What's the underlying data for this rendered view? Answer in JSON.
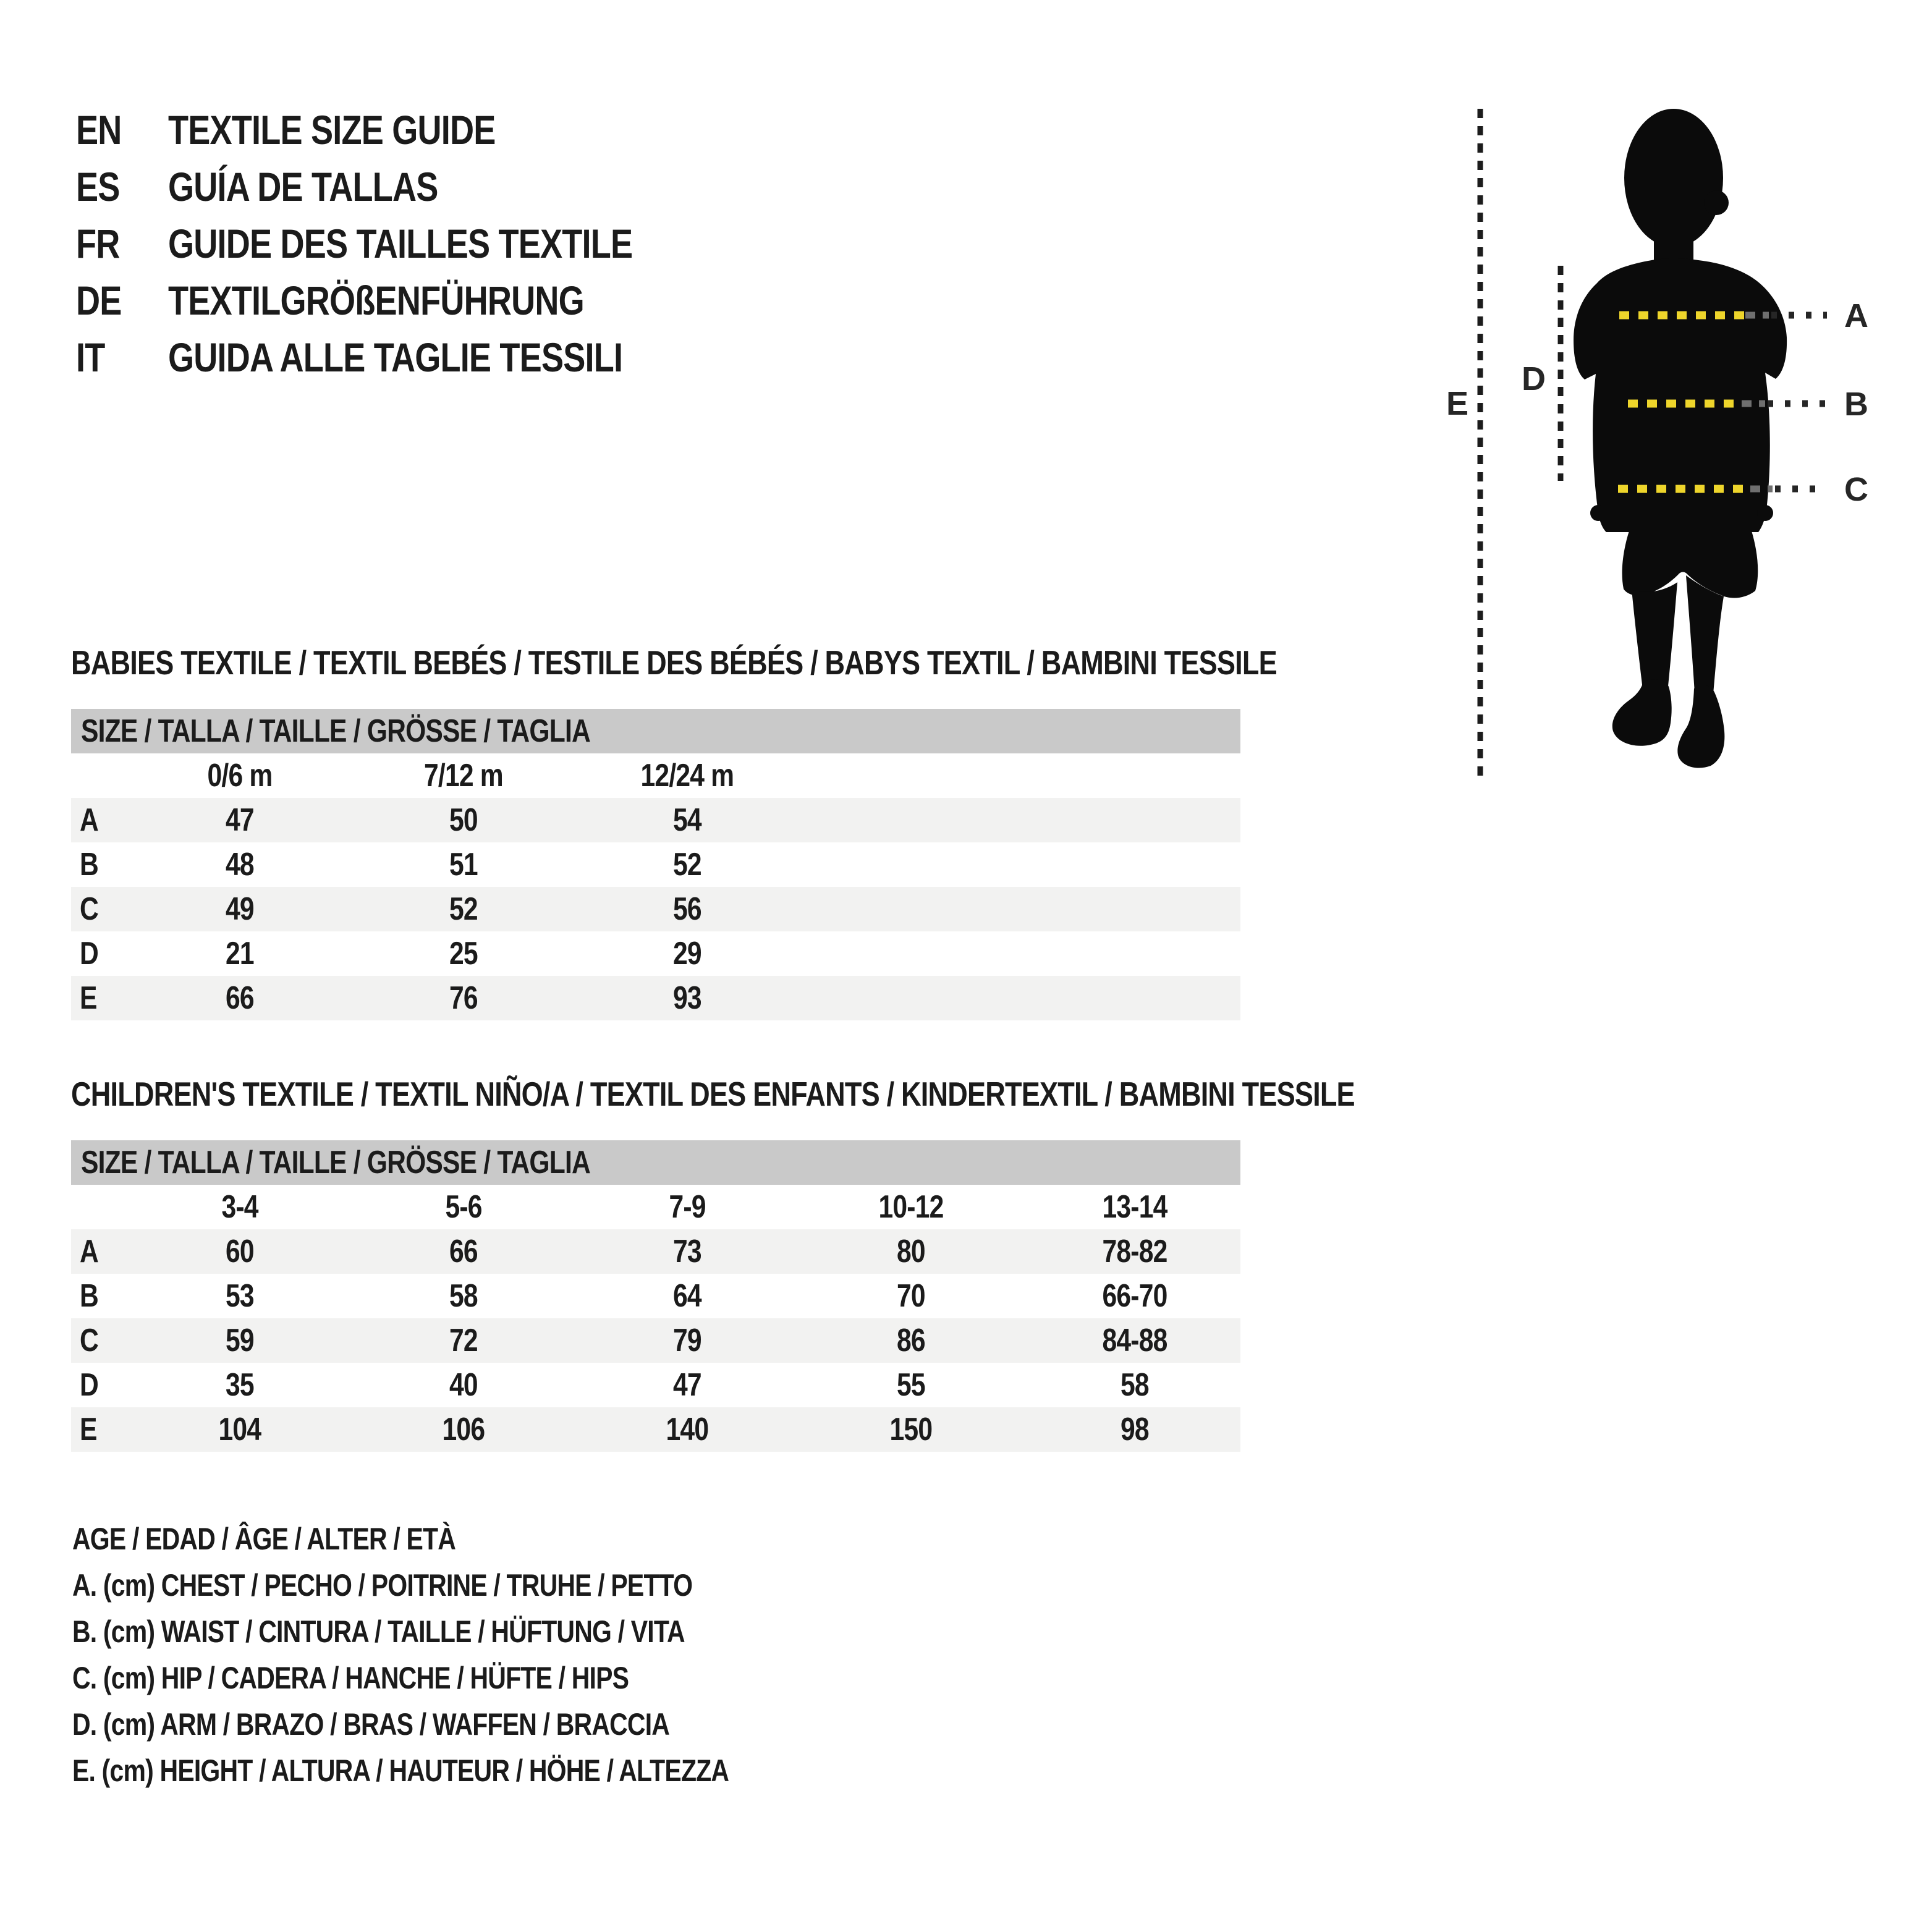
{
  "languages": {
    "items": [
      {
        "code": "EN",
        "title": "TEXTILE SIZE GUIDE"
      },
      {
        "code": "ES",
        "title": "GUÍA DE TALLAS"
      },
      {
        "code": "FR",
        "title": "GUIDE DES TAILLES TEXTILE"
      },
      {
        "code": "DE",
        "title": "TEXTILGRÖßENFÜHRUNG"
      },
      {
        "code": "IT",
        "title": "GUIDA ALLE TAGLIE TESSILI"
      }
    ]
  },
  "figure": {
    "measure_labels": [
      "A",
      "B",
      "C"
    ],
    "side_labels": {
      "d": "D",
      "e": "E"
    },
    "colors": {
      "silhouette": "#0b0b0b",
      "tape_yellow": "#eed52b",
      "tape_gray": "#6f6f6f",
      "dots_dark": "#262626",
      "label": "#262626"
    }
  },
  "babies": {
    "heading": "BABIES TEXTILE / TEXTIL BEBÉS / TESTILE DES BÉBÉS / BABYS TEXTIL / BAMBINI TESSILE",
    "size_bar": "SIZE / TALLA / TAILLE / GRÖSSE / TAGLIA",
    "columns": [
      "0/6 m",
      "7/12 m",
      "12/24 m"
    ],
    "rows": [
      {
        "label": "A",
        "values": [
          "47",
          "50",
          "54"
        ]
      },
      {
        "label": "B",
        "values": [
          "48",
          "51",
          "52"
        ]
      },
      {
        "label": "C",
        "values": [
          "49",
          "52",
          "56"
        ]
      },
      {
        "label": "D",
        "values": [
          "21",
          "25",
          "29"
        ]
      },
      {
        "label": "E",
        "values": [
          "66",
          "76",
          "93"
        ]
      }
    ]
  },
  "children": {
    "heading": "CHILDREN'S TEXTILE / TEXTIL NIÑO/A / TEXTIL DES ENFANTS / KINDERTEXTIL / BAMBINI TESSILE",
    "size_bar": "SIZE / TALLA / TAILLE / GRÖSSE / TAGLIA",
    "columns": [
      "3-4",
      "5-6",
      "7-9",
      "10-12",
      "13-14"
    ],
    "rows": [
      {
        "label": "A",
        "values": [
          "60",
          "66",
          "73",
          "80",
          "78-82"
        ]
      },
      {
        "label": "B",
        "values": [
          "53",
          "58",
          "64",
          "70",
          "66-70"
        ]
      },
      {
        "label": "C",
        "values": [
          "59",
          "72",
          "79",
          "86",
          "84-88"
        ]
      },
      {
        "label": "D",
        "values": [
          "35",
          "40",
          "47",
          "55",
          "58"
        ]
      },
      {
        "label": "E",
        "values": [
          "104",
          "106",
          "140",
          "150",
          "98"
        ]
      }
    ]
  },
  "legend": {
    "lines": [
      "AGE / EDAD / ÂGE / ALTER / ETÀ",
      "A. (cm) CHEST / PECHO / POITRINE / TRUHE / PETTO",
      "B. (cm) WAIST / CINTURA / TAILLE / HÜFTUNG / VITA",
      "C. (cm) HIP / CADERA / HANCHE / HÜFTE / HIPS",
      "D. (cm) ARM / BRAZO / BRAS / WAFFEN / BRACCIA",
      "E. (cm) HEIGHT / ALTURA / HAUTEUR / HÖHE / ALTEZZA"
    ]
  },
  "colors": {
    "text": "#1b1b1b",
    "bar_gray": "#c9c9c9",
    "stripe": "#f2f2f1",
    "background": "#ffffff"
  }
}
